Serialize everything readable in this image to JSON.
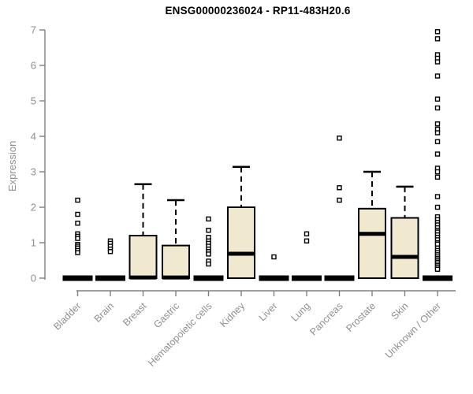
{
  "window": {
    "title": "ENSG00000236024 - RP11-483H20.6"
  },
  "chart_data": {
    "type": "boxplot",
    "title": "ENSG00000236024 - RP11-483H20.6",
    "xlabel": "",
    "ylabel": "Expression",
    "ylim": [
      0,
      7
    ],
    "yticks": [
      0,
      1,
      2,
      3,
      4,
      5,
      6,
      7
    ],
    "grid": false,
    "legend": "none",
    "categories": [
      "Bladder",
      "Brain",
      "Breast",
      "Gastric",
      "Hematopoietic cells",
      "Kidney",
      "Liver",
      "Lung",
      "Pancreas",
      "Prostate",
      "Skin",
      "Unknown / Other"
    ],
    "boxes": [
      {
        "category": "Bladder",
        "whisker_low": 0,
        "q1": 0,
        "median": 0,
        "q3": 0,
        "whisker_high": 0,
        "outliers": [
          2.2,
          1.8,
          1.55,
          1.25,
          1.18,
          1.12,
          0.95,
          0.9,
          0.85,
          0.78,
          0.72
        ]
      },
      {
        "category": "Brain",
        "whisker_low": 0,
        "q1": 0,
        "median": 0,
        "q3": 0,
        "whisker_high": 0,
        "outliers": [
          1.05,
          0.98,
          0.9,
          0.82,
          0.75
        ]
      },
      {
        "category": "Breast",
        "whisker_low": 0,
        "q1": 0,
        "median": 0.02,
        "q3": 1.2,
        "whisker_high": 2.65,
        "outliers": []
      },
      {
        "category": "Gastric",
        "whisker_low": 0,
        "q1": 0,
        "median": 0.02,
        "q3": 0.92,
        "whisker_high": 2.2,
        "outliers": []
      },
      {
        "category": "Hematopoietic cells",
        "whisker_low": 0,
        "q1": 0,
        "median": 0,
        "q3": 0,
        "whisker_high": 0,
        "outliers": [
          1.67,
          1.35,
          1.15,
          1.05,
          0.98,
          0.9,
          0.82,
          0.75,
          0.68,
          0.48,
          0.4
        ]
      },
      {
        "category": "Kidney",
        "whisker_low": 0,
        "q1": 0,
        "median": 0.69,
        "q3": 2.0,
        "whisker_high": 3.14,
        "outliers": []
      },
      {
        "category": "Liver",
        "whisker_low": 0,
        "q1": 0,
        "median": 0,
        "q3": 0,
        "whisker_high": 0,
        "outliers": [
          0.6
        ]
      },
      {
        "category": "Lung",
        "whisker_low": 0,
        "q1": 0,
        "median": 0,
        "q3": 0,
        "whisker_high": 0,
        "outliers": [
          1.25,
          1.05
        ]
      },
      {
        "category": "Pancreas",
        "whisker_low": 0,
        "q1": 0,
        "median": 0,
        "q3": 0,
        "whisker_high": 0,
        "outliers": [
          3.95,
          2.55,
          2.2
        ]
      },
      {
        "category": "Prostate",
        "whisker_low": 0,
        "q1": 0,
        "median": 1.25,
        "q3": 1.96,
        "whisker_high": 3.0,
        "outliers": []
      },
      {
        "category": "Skin",
        "whisker_low": 0,
        "q1": 0,
        "median": 0.6,
        "q3": 1.7,
        "whisker_high": 2.58,
        "outliers": []
      },
      {
        "category": "Unknown / Other",
        "whisker_low": 0,
        "q1": 0,
        "median": 0,
        "q3": 0,
        "whisker_high": 0,
        "outliers": [
          6.95,
          6.75,
          6.3,
          6.2,
          6.1,
          5.7,
          5.05,
          4.8,
          4.35,
          4.2,
          4.1,
          3.85,
          3.5,
          3.1,
          3.0,
          2.85,
          2.3,
          2.0,
          1.73,
          1.65,
          1.57,
          1.5,
          1.42,
          1.35,
          1.3,
          1.22,
          1.15,
          1.08,
          1.0,
          0.96,
          0.85,
          0.78,
          0.72,
          0.66,
          0.6,
          0.55,
          0.5,
          0.45,
          0.4,
          0.35,
          0.3,
          0.25
        ]
      }
    ],
    "colors": {
      "box_fill": "#f0e9cf",
      "box_stroke": "#000000",
      "median": "#000000",
      "outlier_fill": "#ffffff",
      "axis": "#808080",
      "tick_text": "#8f8f8f",
      "title_text": "#000000"
    }
  }
}
